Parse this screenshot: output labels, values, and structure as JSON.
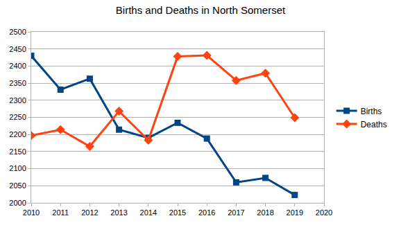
{
  "chart_data": {
    "type": "line",
    "title": "Births and Deaths in North Somerset",
    "x": [
      2010,
      2011,
      2012,
      2013,
      2014,
      2015,
      2016,
      2017,
      2018,
      2019
    ],
    "series": [
      {
        "name": "Births",
        "color": "#004586",
        "marker": "square",
        "line_style": "solid",
        "values": [
          2430,
          2331,
          2363,
          2214,
          2190,
          2234,
          2188,
          2060,
          2073,
          2023
        ]
      },
      {
        "name": "Deaths",
        "color": "#ff420e",
        "marker": "diamond",
        "line_style": "solid",
        "values": [
          2197,
          2214,
          2165,
          2268,
          2183,
          2428,
          2431,
          2358,
          2379,
          2249
        ]
      }
    ],
    "xlim": [
      2010,
      2020
    ],
    "xticks": [
      2010,
      2011,
      2012,
      2013,
      2014,
      2015,
      2016,
      2017,
      2018,
      2019,
      2020
    ],
    "ylim": [
      2000,
      2500
    ],
    "yticks": [
      2000,
      2050,
      2100,
      2150,
      2200,
      2250,
      2300,
      2350,
      2400,
      2450,
      2500
    ],
    "grid": true,
    "legend": "right"
  }
}
